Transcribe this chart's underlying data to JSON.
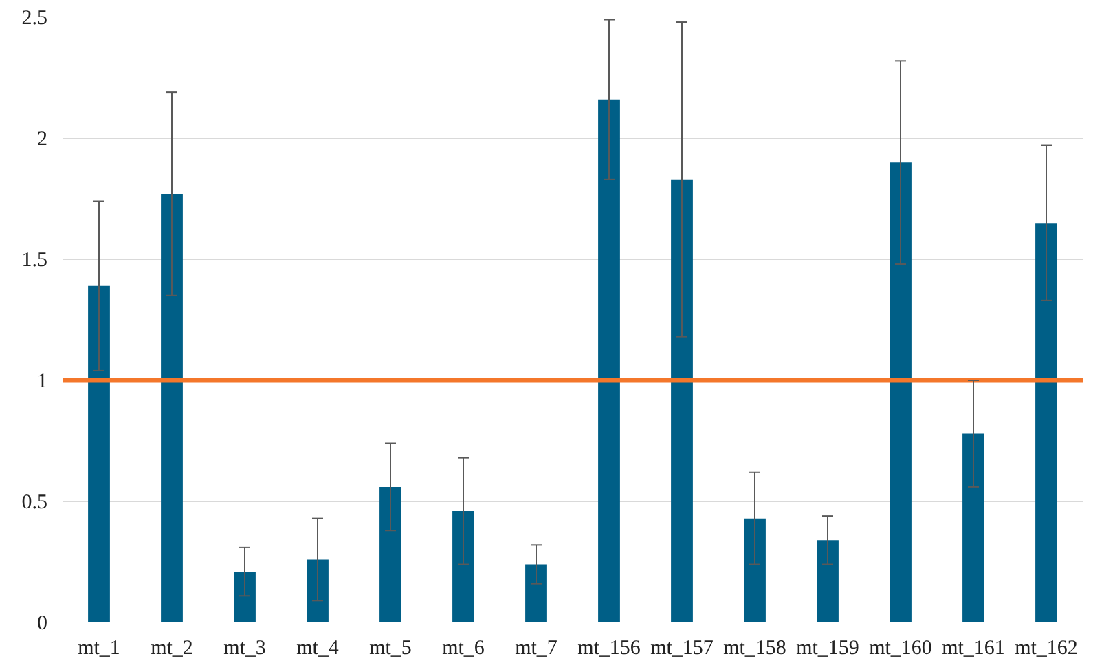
{
  "chart_data": {
    "type": "bar",
    "categories": [
      "mt_1",
      "mt_2",
      "mt_3",
      "mt_4",
      "mt_5",
      "mt_6",
      "mt_7",
      "mt_156",
      "mt_157",
      "mt_158",
      "mt_159",
      "mt_160",
      "mt_161",
      "mt_162"
    ],
    "series": [
      {
        "color": "#005f87",
        "values": [
          1.39,
          1.77,
          0.21,
          0.26,
          0.56,
          0.46,
          0.24,
          2.16,
          1.83,
          0.43,
          0.34,
          1.9,
          0.78,
          1.65
        ],
        "errors": [
          0.35,
          0.42,
          0.1,
          0.17,
          0.18,
          0.22,
          0.08,
          0.33,
          0.65,
          0.19,
          0.1,
          0.42,
          0.22,
          0.32
        ]
      }
    ],
    "ylim": [
      0,
      2.5
    ],
    "yticks": [
      0,
      0.5,
      1,
      1.5,
      2,
      2.5
    ],
    "grid": "y",
    "ref_lines": [
      {
        "axis": "y",
        "value": 1,
        "color": "#f4772b"
      }
    ]
  }
}
